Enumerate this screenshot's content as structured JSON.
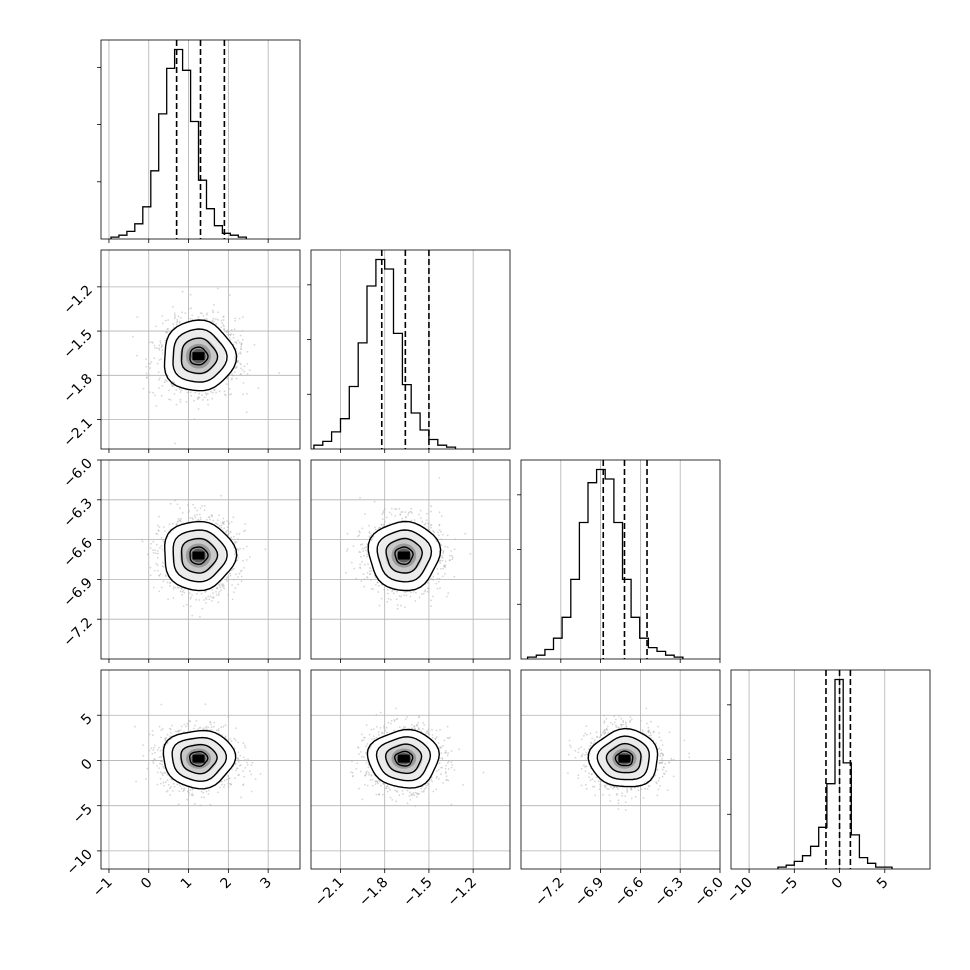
{
  "chart_data": {
    "type": "corner",
    "title": "",
    "n_params": 4,
    "params": [
      {
        "name": "",
        "range": [
          -1.2,
          3.8
        ],
        "ticks": [
          -1,
          0,
          1,
          2,
          3
        ],
        "tick_labels": [
          "−1",
          "0",
          "1",
          "2",
          "3"
        ],
        "mean": 1.25,
        "sd": 0.45,
        "quantiles": [
          0.7,
          1.3,
          1.9
        ],
        "hist": {
          "start": -0.95,
          "width": 0.2,
          "counts": [
            0.01,
            0.02,
            0.04,
            0.08,
            0.17,
            0.36,
            0.66,
            0.9,
            1.0,
            0.89,
            0.62,
            0.31,
            0.16,
            0.07,
            0.03,
            0.02,
            0.01
          ]
        }
      },
      {
        "name": "",
        "range": [
          -2.3,
          -0.95
        ],
        "ticks": [
          -2.1,
          -1.8,
          -1.5,
          -1.2
        ],
        "tick_labels": [
          "−2.1",
          "−1.8",
          "−1.5",
          "−1.2"
        ],
        "mean": -1.67,
        "sd": 0.12,
        "quantiles": [
          -1.82,
          -1.66,
          -1.5
        ],
        "hist": {
          "start": -2.28,
          "width": 0.06,
          "counts": [
            0.02,
            0.04,
            0.09,
            0.16,
            0.33,
            0.56,
            0.86,
            1.0,
            0.95,
            0.61,
            0.34,
            0.19,
            0.1,
            0.05,
            0.02,
            0.01
          ]
        }
      },
      {
        "name": "",
        "range": [
          -7.5,
          -6.0
        ],
        "ticks": [
          -7.2,
          -6.9,
          -6.6,
          -6.3,
          -6.0
        ],
        "tick_labels": [
          "−7.2",
          "−6.9",
          "−6.6",
          "−6.3",
          "−6.0"
        ],
        "mean": -6.72,
        "sd": 0.13,
        "quantiles": [
          -6.88,
          -6.72,
          -6.55
        ],
        "hist": {
          "start": -7.45,
          "width": 0.065,
          "counts": [
            0.01,
            0.02,
            0.05,
            0.11,
            0.22,
            0.42,
            0.72,
            0.93,
            1.0,
            0.95,
            0.72,
            0.42,
            0.22,
            0.11,
            0.06,
            0.04,
            0.02,
            0.01
          ]
        }
      },
      {
        "name": "",
        "range": [
          -12.0,
          10.0
        ],
        "ticks": [
          -10,
          -5,
          0,
          5
        ],
        "tick_labels": [
          "−10",
          "−5",
          "0",
          "5"
        ],
        "mean": 0.2,
        "sd": 1.6,
        "quantiles": [
          -1.5,
          0.0,
          1.2
        ],
        "hist": {
          "start": -6.8,
          "width": 0.9,
          "counts": [
            0.01,
            0.02,
            0.04,
            0.07,
            0.12,
            0.22,
            0.45,
            1.0,
            0.56,
            0.18,
            0.06,
            0.03,
            0.01,
            0.01
          ]
        }
      }
    ],
    "contour_sigmas": [
      0.5,
      1.0,
      1.5,
      2.0
    ],
    "grid": true,
    "legend": "none"
  }
}
